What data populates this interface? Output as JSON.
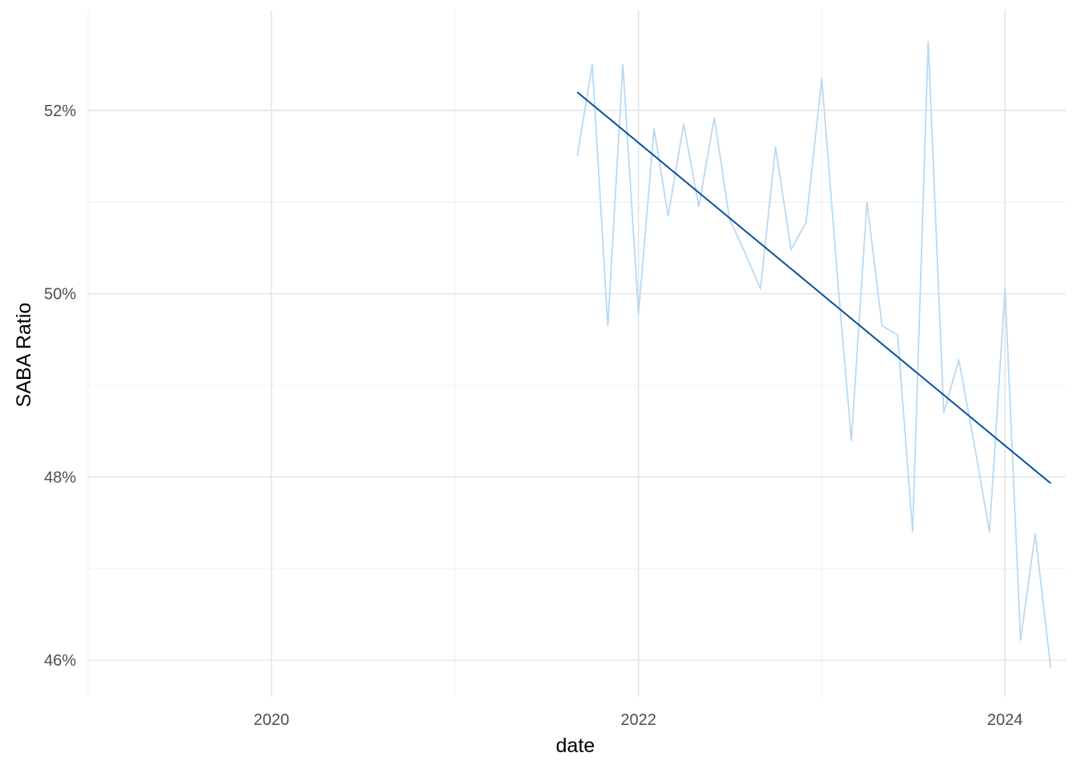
{
  "chart_data": {
    "type": "line",
    "title": "",
    "xlabel": "date",
    "ylabel": "SABA Ratio",
    "xlim": [
      "2019-01-01",
      "2024-05-01"
    ],
    "ylim": [
      45.6,
      53.1
    ],
    "x_ticks": [
      {
        "value": "2020-01-01",
        "label": "2020"
      },
      {
        "value": "2022-01-01",
        "label": "2022"
      },
      {
        "value": "2024-01-01",
        "label": "2024"
      }
    ],
    "x_minor_ticks": [
      "2019-01-01",
      "2021-01-01",
      "2023-01-01"
    ],
    "y_ticks": [
      {
        "value": 46,
        "label": "46%"
      },
      {
        "value": 48,
        "label": "48%"
      },
      {
        "value": 50,
        "label": "50%"
      },
      {
        "value": 52,
        "label": "52%"
      }
    ],
    "y_minor_ticks": [
      47,
      49,
      51
    ],
    "grid": true,
    "legend": "none",
    "series": [
      {
        "color": "#b9d9f2",
        "points": [
          {
            "x": "2021-09-01",
            "y": 51.5
          },
          {
            "x": "2021-10-01",
            "y": 52.5
          },
          {
            "x": "2021-11-01",
            "y": 49.65
          },
          {
            "x": "2021-12-01",
            "y": 52.5
          },
          {
            "x": "2022-01-01",
            "y": 49.78
          },
          {
            "x": "2022-02-01",
            "y": 51.8
          },
          {
            "x": "2022-03-01",
            "y": 50.85
          },
          {
            "x": "2022-04-01",
            "y": 51.85
          },
          {
            "x": "2022-05-01",
            "y": 50.95
          },
          {
            "x": "2022-06-01",
            "y": 51.92
          },
          {
            "x": "2022-07-01",
            "y": 50.82
          },
          {
            "x": "2022-08-01",
            "y": 50.45
          },
          {
            "x": "2022-09-01",
            "y": 50.05
          },
          {
            "x": "2022-10-01",
            "y": 51.6
          },
          {
            "x": "2022-11-01",
            "y": 50.48
          },
          {
            "x": "2022-12-01",
            "y": 50.78
          },
          {
            "x": "2023-01-01",
            "y": 52.35
          },
          {
            "x": "2023-02-01",
            "y": 50.2
          },
          {
            "x": "2023-03-01",
            "y": 48.4
          },
          {
            "x": "2023-04-01",
            "y": 51.0
          },
          {
            "x": "2023-05-01",
            "y": 49.65
          },
          {
            "x": "2023-06-01",
            "y": 49.55
          },
          {
            "x": "2023-07-01",
            "y": 47.4
          },
          {
            "x": "2023-08-01",
            "y": 52.75
          },
          {
            "x": "2023-09-01",
            "y": 48.7
          },
          {
            "x": "2023-10-01",
            "y": 49.28
          },
          {
            "x": "2023-11-01",
            "y": 48.35
          },
          {
            "x": "2023-12-01",
            "y": 47.4
          },
          {
            "x": "2024-01-01",
            "y": 50.05
          },
          {
            "x": "2024-02-01",
            "y": 46.22
          },
          {
            "x": "2024-03-01",
            "y": 47.38
          },
          {
            "x": "2024-04-01",
            "y": 45.92
          }
        ]
      },
      {
        "color": "#08519c",
        "points": [
          {
            "x": "2021-09-01",
            "y": 52.2
          },
          {
            "x": "2024-04-01",
            "y": 47.93
          }
        ]
      }
    ]
  }
}
